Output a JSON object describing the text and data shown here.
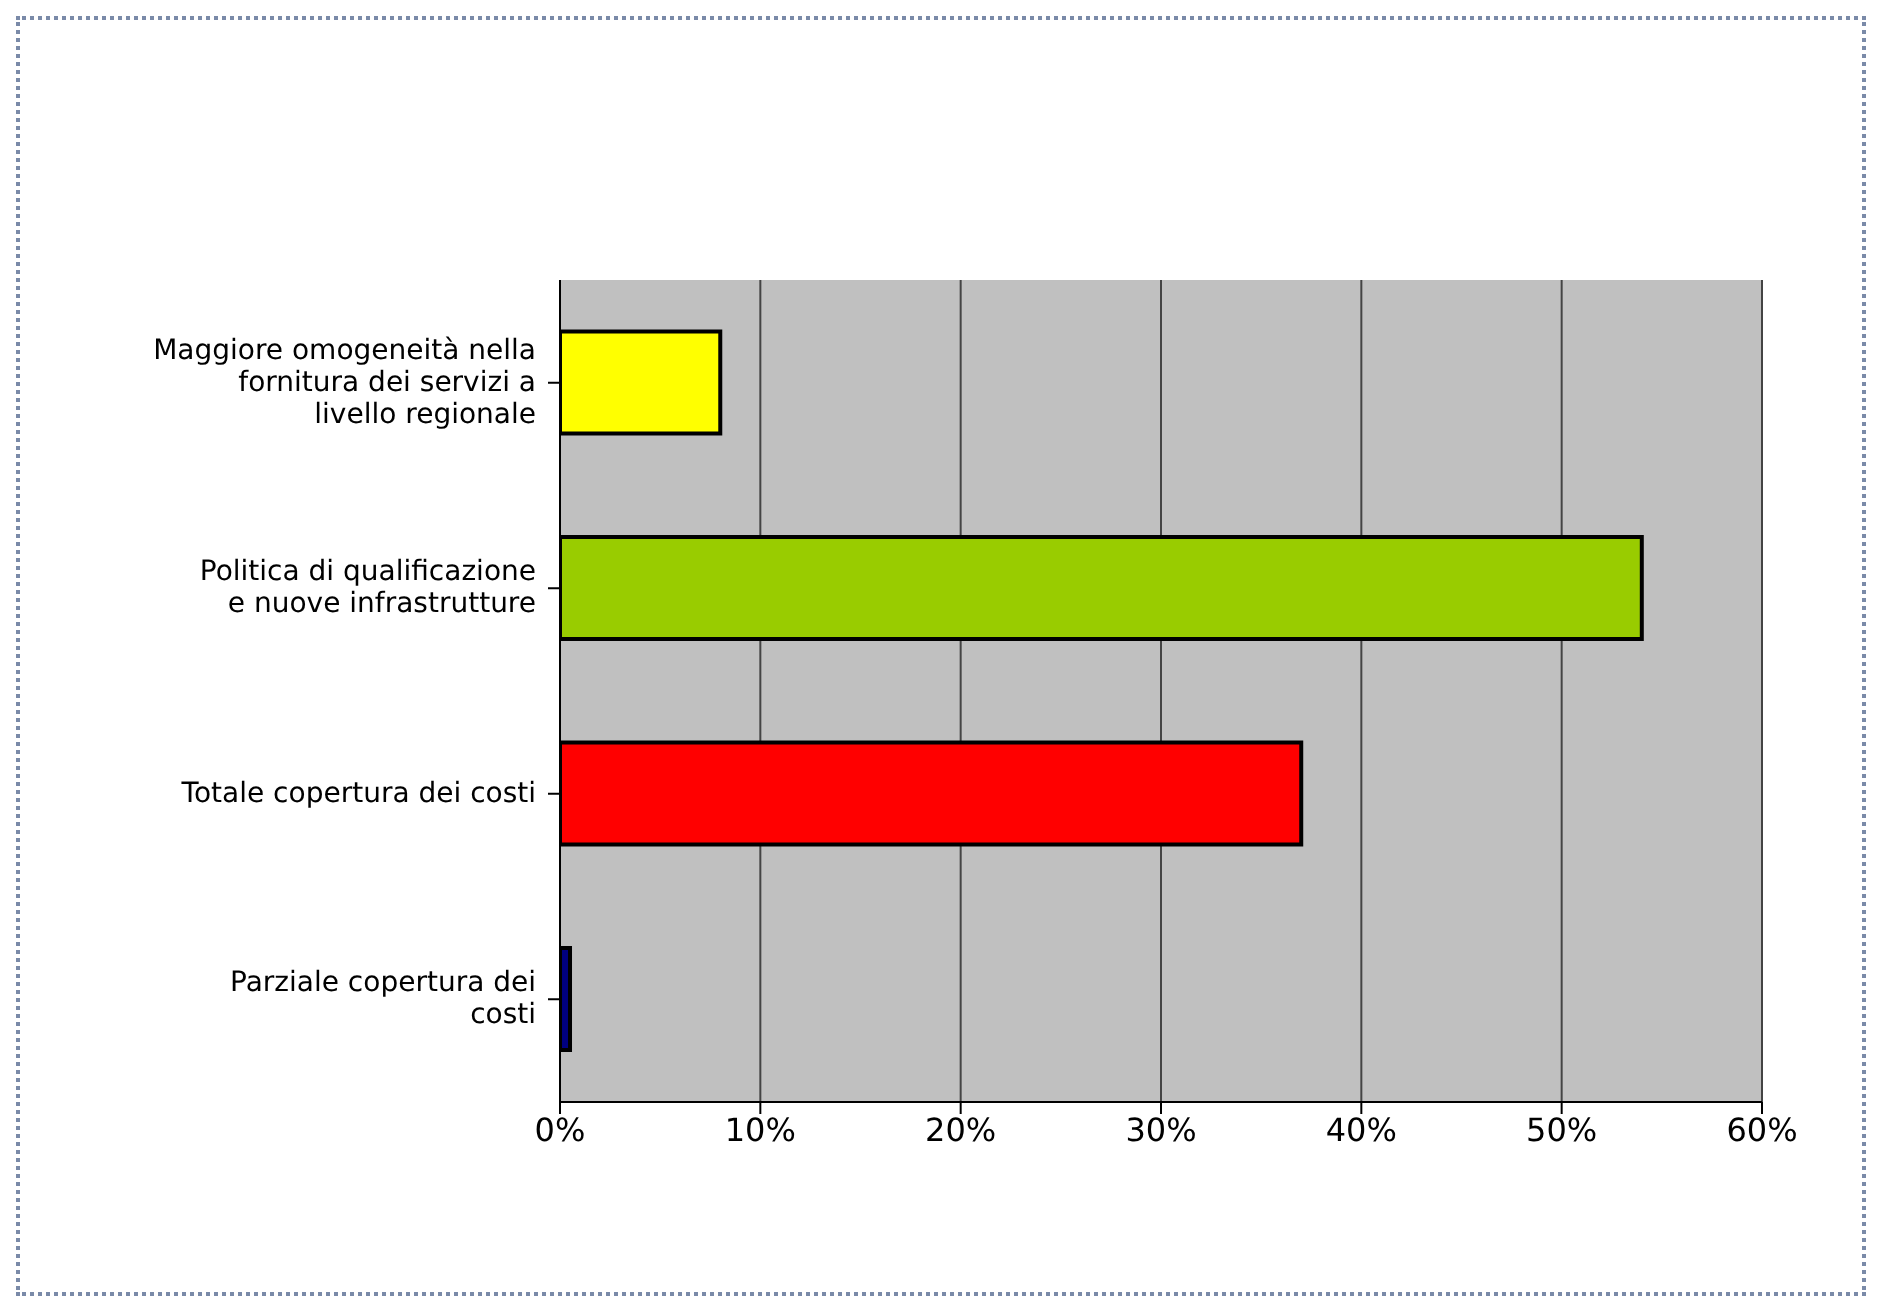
{
  "chart_data": {
    "type": "bar",
    "orientation": "horizontal",
    "categories": [
      "Maggiore omogeneità nella fornitura dei servizi a livello regionale",
      "Politica di qualificazione e nuove infrastrutture",
      "Totale copertura dei costi",
      "Parziale copertura dei costi"
    ],
    "values": [
      8,
      54,
      37,
      0.5
    ],
    "colors": [
      "#ffff00",
      "#99cc00",
      "#ff0000",
      "#000080"
    ],
    "xlim": [
      0,
      60
    ],
    "xticks": [
      {
        "value": 0,
        "label": "0%"
      },
      {
        "value": 10,
        "label": "10%"
      },
      {
        "value": 20,
        "label": "20%"
      },
      {
        "value": 30,
        "label": "30%"
      },
      {
        "value": 40,
        "label": "40%"
      },
      {
        "value": 50,
        "label": "50%"
      },
      {
        "value": 60,
        "label": "60%"
      }
    ],
    "grid": "x"
  }
}
